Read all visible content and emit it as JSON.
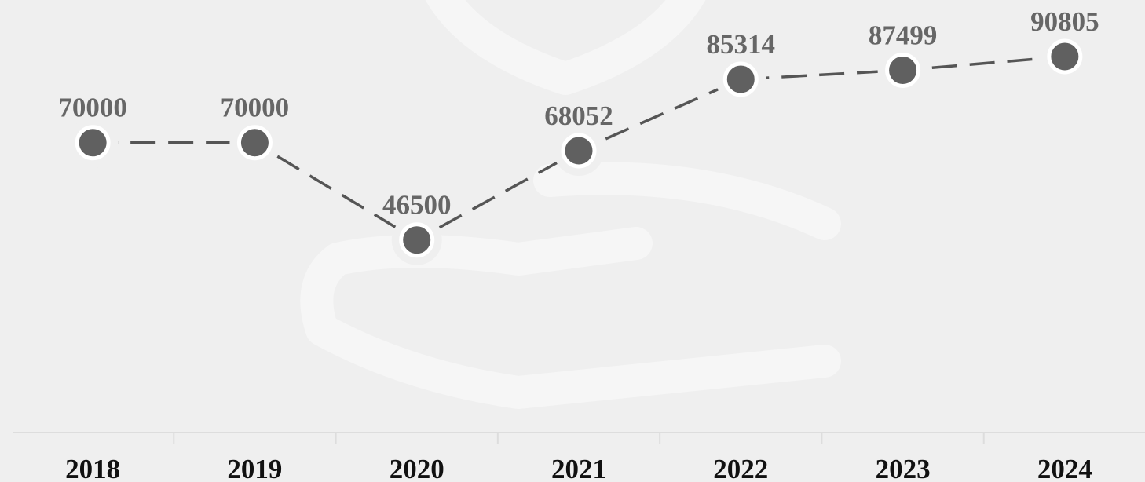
{
  "chart_data": {
    "type": "line",
    "categories": [
      "2018",
      "2019",
      "2020",
      "2021",
      "2022",
      "2023",
      "2024"
    ],
    "values": [
      70000,
      70000,
      46500,
      68052,
      85314,
      87499,
      90805
    ],
    "color": "#606060"
  }
}
